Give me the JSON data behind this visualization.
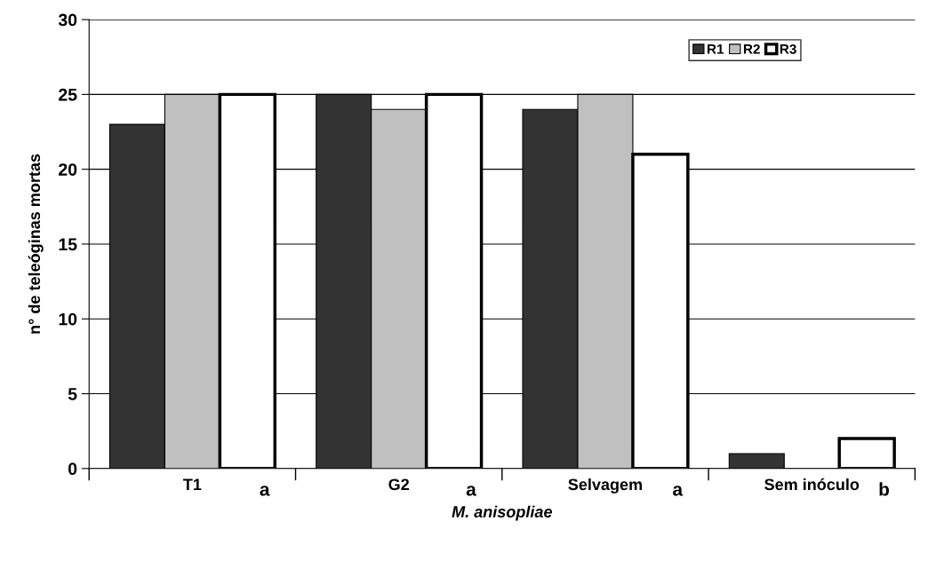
{
  "chart_data": {
    "type": "bar",
    "xlabel": "M. anisopliae",
    "ylabel": "n° de teleóginas mortas",
    "categories": [
      "T1",
      "G2",
      "Selvagem",
      "Sem inóculo"
    ],
    "series": [
      {
        "name": "R1",
        "color": "#333333",
        "values": [
          23,
          25,
          24,
          1
        ]
      },
      {
        "name": "R2",
        "color": "#c0c0c0",
        "values": [
          25,
          24,
          25,
          0
        ]
      },
      {
        "name": "R3",
        "color": "#ffffff",
        "values": [
          25,
          25,
          21,
          2
        ]
      }
    ],
    "ylim": [
      0,
      30
    ],
    "yticks": [
      0,
      5,
      10,
      15,
      20,
      25,
      30
    ],
    "grid": "y",
    "legend": "top right",
    "annotations": [
      "a",
      "a",
      "a",
      "b"
    ]
  }
}
